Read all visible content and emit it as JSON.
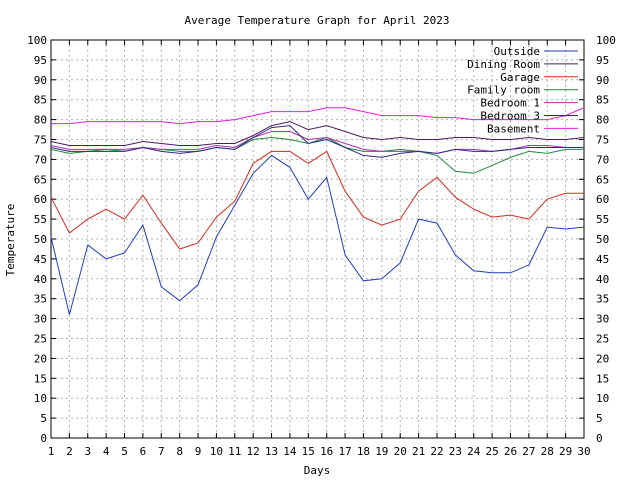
{
  "chart_data": {
    "type": "line",
    "title": "Average Temperature Graph for April 2023",
    "xlabel": "Days",
    "ylabel": "Temperature",
    "x": [
      1,
      2,
      3,
      4,
      5,
      6,
      7,
      8,
      9,
      10,
      11,
      12,
      13,
      14,
      15,
      16,
      17,
      18,
      19,
      20,
      21,
      22,
      23,
      24,
      25,
      26,
      27,
      28,
      29,
      30
    ],
    "xlim": [
      1,
      30
    ],
    "ylim": [
      0,
      100
    ],
    "y_ticks": [
      0,
      5,
      10,
      15,
      20,
      25,
      30,
      35,
      40,
      45,
      50,
      55,
      60,
      65,
      70,
      75,
      80,
      85,
      90,
      95,
      100
    ],
    "right_axis_ticks": true,
    "grid": true,
    "legend_position": "top-right",
    "series": [
      {
        "name": "Outside",
        "color": "#1f3fbf",
        "values": [
          50.5,
          31,
          48.5,
          45,
          46.5,
          53.5,
          38,
          34.5,
          38.5,
          50.5,
          58.5,
          66.5,
          71,
          68,
          60,
          65.5,
          46,
          39.5,
          40,
          44,
          55,
          54,
          46,
          42,
          41.5,
          41.5,
          43.5,
          53,
          52.5,
          53
        ]
      },
      {
        "name": "Dining Room",
        "color": "#4b1a5e",
        "values": [
          74.5,
          73.5,
          73.5,
          73.5,
          73.5,
          74.5,
          74,
          73.5,
          73.5,
          74,
          74,
          76,
          78.5,
          79.5,
          77.5,
          78.5,
          77,
          75.5,
          75,
          75.5,
          75,
          75,
          75.5,
          75.5,
          75,
          75,
          75.5,
          75,
          75,
          75.5
        ]
      },
      {
        "name": "Garage",
        "color": "#d42a1e",
        "values": [
          60.5,
          51.5,
          55,
          57.5,
          55,
          61,
          54,
          47.5,
          49,
          55.5,
          59.5,
          69,
          72,
          72,
          69,
          72,
          62,
          55.5,
          53.5,
          55,
          62,
          65.5,
          60.5,
          57.5,
          55.5,
          56,
          55,
          60,
          61.5,
          61.5
        ]
      },
      {
        "name": "Family room",
        "color": "#1e8a3c",
        "values": [
          72.5,
          71.5,
          72,
          72.5,
          72,
          73,
          72.5,
          72,
          72,
          73,
          72.5,
          75,
          75.5,
          75,
          74,
          75.5,
          73,
          72,
          72,
          72.5,
          72,
          71,
          67,
          66.5,
          68.5,
          70.5,
          72,
          71.5,
          72.5,
          72.5
        ]
      },
      {
        "name": "Bedroom 1",
        "color": "#b030b0",
        "values": [
          73.5,
          72.5,
          72.5,
          72.5,
          72.5,
          73,
          72.5,
          72.5,
          72.5,
          73.5,
          73,
          75.5,
          77,
          77,
          75,
          75.5,
          74,
          72.5,
          72,
          72,
          72,
          71.5,
          72.5,
          72.5,
          72,
          72.5,
          73.5,
          73.5,
          73,
          73
        ]
      },
      {
        "name": "Bedroom 3",
        "color": "#2e2a86",
        "values": [
          73,
          72,
          72,
          72,
          72,
          73,
          72,
          71.5,
          72,
          73,
          72.5,
          75.5,
          78,
          78.5,
          74,
          75,
          73,
          71,
          70.5,
          71.5,
          72,
          71.5,
          72.5,
          72,
          72,
          72.5,
          73,
          73,
          73,
          73
        ]
      },
      {
        "name": "Basement",
        "color": "#e01fe0",
        "values": [
          79,
          79,
          79.5,
          79.5,
          79.5,
          79.5,
          79.5,
          79,
          79.5,
          79.5,
          80,
          81,
          82,
          82,
          82,
          83,
          83,
          82,
          81,
          81,
          81,
          80.5,
          80.5,
          80,
          80,
          80,
          80,
          80,
          81,
          83
        ]
      }
    ]
  }
}
